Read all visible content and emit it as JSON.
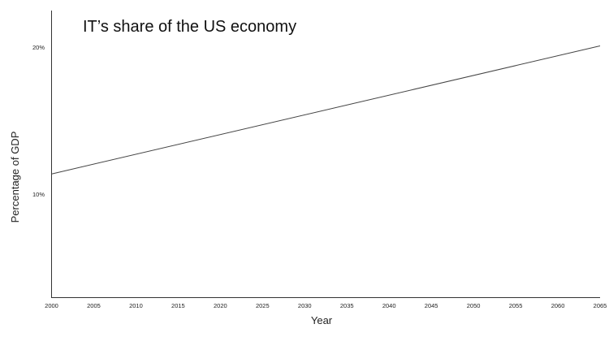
{
  "chart_data": {
    "type": "line",
    "title": "IT’s share of the US economy",
    "xlabel": "Year",
    "ylabel": "Percentage of GDP",
    "x_ticks": [
      "2000",
      "2005",
      "2010",
      "2015",
      "2020",
      "2025",
      "2030",
      "2035",
      "2040",
      "2045",
      "2050",
      "2055",
      "2060",
      "2065"
    ],
    "y_ticks": [
      {
        "value": 10,
        "label": "10%"
      },
      {
        "value": 20,
        "label": "20%"
      }
    ],
    "xlim": [
      2000,
      2065
    ],
    "ylim": [
      3,
      22.5
    ],
    "grid": false,
    "series": [
      {
        "x": [
          2000,
          2065
        ],
        "y": [
          11.4,
          20.1
        ]
      }
    ],
    "colors": {
      "line": "#444444",
      "axis": "#333333",
      "text": "#222222"
    }
  }
}
